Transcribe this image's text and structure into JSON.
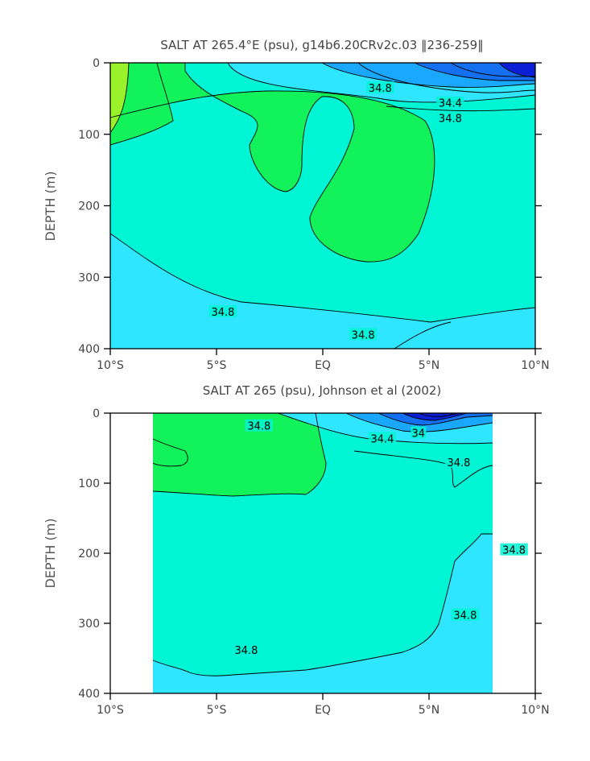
{
  "colors": {
    "s_low_dark": "#0a1fd6",
    "s_low_mid": "#1470f0",
    "s_low": "#1aa8ff",
    "s_mid_low": "#2ee6ff",
    "s_base": "#00f5d4",
    "s_green": "#12f25a",
    "s_lime": "#99f22a",
    "frame": "#000000"
  },
  "chart_data": [
    {
      "type": "contour",
      "title": "SALT AT 265.4°E (psu), g14b6.20CRv2c.03 ‖236-259‖",
      "ylabel": "DEPTH (m)",
      "xlabel": "",
      "xlim": [
        -10,
        10
      ],
      "ylim": [
        400,
        0
      ],
      "x_ticks": [
        -10,
        -5,
        0,
        5,
        10
      ],
      "x_tick_labels": [
        "10°S",
        "5°S",
        "EQ",
        "5°N",
        "10°N"
      ],
      "y_ticks": [
        0,
        100,
        200,
        300,
        400
      ],
      "y_tick_labels": [
        "0",
        "100",
        "200",
        "300",
        "400"
      ],
      "data_extent_lon": [
        -10,
        10
      ],
      "contour_labels": [
        {
          "text": "34.8",
          "lon": 2.7,
          "depth": 35
        },
        {
          "text": "34.4",
          "lon": 6.0,
          "depth": 56
        },
        {
          "text": "34.8",
          "lon": 6.0,
          "depth": 77
        },
        {
          "text": "34.8",
          "lon": -4.7,
          "depth": 348
        },
        {
          "text": "34.8",
          "lon": 1.9,
          "depth": 380
        }
      ]
    },
    {
      "type": "contour",
      "title": "SALT AT 265 (psu), Johnson et al (2002)",
      "ylabel": "DEPTH (m)",
      "xlabel": "",
      "xlim": [
        -10,
        10
      ],
      "ylim": [
        400,
        0
      ],
      "x_ticks": [
        -10,
        -5,
        0,
        5,
        10
      ],
      "x_tick_labels": [
        "10°S",
        "5°S",
        "EQ",
        "5°N",
        "10°N"
      ],
      "y_ticks": [
        0,
        100,
        200,
        300,
        400
      ],
      "y_tick_labels": [
        "0",
        "100",
        "200",
        "300",
        "400"
      ],
      "data_extent_lon": [
        -8,
        8
      ],
      "contour_labels": [
        {
          "text": "34.8",
          "lon": -3.0,
          "depth": 18
        },
        {
          "text": "34",
          "lon": 4.5,
          "depth": 28
        },
        {
          "text": "34.4",
          "lon": 2.8,
          "depth": 36
        },
        {
          "text": "34.8",
          "lon": 6.4,
          "depth": 70
        },
        {
          "text": "34.8",
          "lon": 9.0,
          "depth": 195
        },
        {
          "text": "34.8",
          "lon": 6.7,
          "depth": 288
        },
        {
          "text": "34.8",
          "lon": -3.6,
          "depth": 338
        }
      ]
    }
  ]
}
